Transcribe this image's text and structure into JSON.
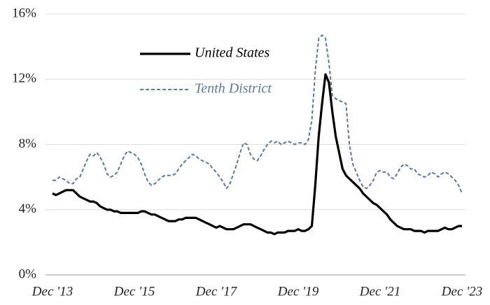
{
  "chart_data": {
    "type": "line",
    "categories": [
      "Dec '13",
      null,
      null,
      null,
      null,
      null,
      null,
      null,
      null,
      null,
      null,
      null,
      null,
      null,
      null,
      null,
      null,
      null,
      null,
      null,
      null,
      null,
      null,
      null,
      "Dec '15",
      null,
      null,
      null,
      null,
      null,
      null,
      null,
      null,
      null,
      null,
      null,
      null,
      null,
      null,
      null,
      null,
      null,
      null,
      null,
      null,
      null,
      null,
      null,
      "Dec '17",
      null,
      null,
      null,
      null,
      null,
      null,
      null,
      null,
      null,
      null,
      null,
      null,
      null,
      null,
      null,
      null,
      null,
      null,
      null,
      null,
      null,
      null,
      null,
      "Dec '19",
      null,
      null,
      null,
      null,
      null,
      null,
      null,
      null,
      null,
      null,
      null,
      null,
      null,
      null,
      null,
      null,
      null,
      null,
      null,
      null,
      null,
      null,
      null,
      "Dec '21",
      null,
      null,
      null,
      null,
      null,
      null,
      null,
      null,
      null,
      null,
      null,
      null,
      null,
      null,
      null,
      null,
      null,
      null,
      null,
      null,
      null,
      null,
      null,
      "Dec '23"
    ],
    "series": [
      {
        "name": "United States",
        "color": "#000000",
        "dashed": false,
        "values": [
          5.0,
          4.9,
          5.0,
          5.1,
          5.2,
          5.2,
          5.2,
          5.0,
          4.8,
          4.7,
          4.6,
          4.5,
          4.5,
          4.4,
          4.2,
          4.1,
          4.0,
          4.0,
          3.9,
          3.9,
          3.8,
          3.8,
          3.8,
          3.8,
          3.8,
          3.8,
          3.9,
          3.9,
          3.8,
          3.7,
          3.7,
          3.6,
          3.5,
          3.4,
          3.3,
          3.3,
          3.3,
          3.4,
          3.4,
          3.5,
          3.5,
          3.5,
          3.5,
          3.4,
          3.3,
          3.2,
          3.1,
          3.0,
          2.9,
          3.0,
          2.9,
          2.8,
          2.8,
          2.8,
          2.9,
          3.0,
          3.1,
          3.1,
          3.1,
          3.0,
          2.9,
          2.8,
          2.7,
          2.6,
          2.6,
          2.5,
          2.6,
          2.6,
          2.6,
          2.7,
          2.7,
          2.7,
          2.8,
          2.7,
          2.7,
          2.8,
          3.0,
          5.5,
          8.5,
          10.5,
          12.3,
          11.8,
          10.0,
          8.5,
          7.5,
          6.5,
          6.1,
          5.9,
          5.7,
          5.5,
          5.3,
          5.0,
          4.8,
          4.6,
          4.4,
          4.3,
          4.1,
          3.9,
          3.7,
          3.4,
          3.2,
          3.0,
          2.9,
          2.8,
          2.8,
          2.8,
          2.7,
          2.7,
          2.7,
          2.6,
          2.7,
          2.7,
          2.7,
          2.7,
          2.8,
          2.9,
          2.8,
          2.8,
          2.9,
          3.0,
          3.0
        ]
      },
      {
        "name": "Tenth District",
        "color": "#5b7a99",
        "dashed": true,
        "values": [
          5.8,
          5.8,
          6.0,
          5.9,
          5.8,
          5.6,
          5.6,
          5.9,
          6.0,
          6.5,
          7.0,
          7.4,
          7.3,
          7.5,
          7.2,
          6.8,
          6.2,
          6.0,
          6.1,
          6.3,
          6.8,
          7.3,
          7.6,
          7.5,
          7.4,
          7.2,
          6.8,
          6.2,
          5.7,
          5.5,
          5.6,
          5.8,
          6.0,
          6.1,
          6.1,
          6.1,
          6.2,
          6.5,
          6.8,
          7.0,
          7.2,
          7.4,
          7.3,
          7.1,
          7.0,
          6.9,
          6.8,
          6.5,
          6.3,
          6.0,
          5.7,
          5.3,
          5.6,
          6.2,
          6.8,
          7.5,
          8.1,
          8.0,
          7.4,
          7.1,
          7.0,
          7.3,
          7.7,
          8.0,
          8.2,
          8.1,
          8.2,
          8.0,
          8.1,
          8.2,
          8.1,
          8.0,
          8.1,
          8.1,
          8.0,
          8.3,
          9.5,
          12.5,
          14.5,
          14.7,
          14.5,
          13.0,
          11.0,
          10.8,
          10.7,
          10.6,
          10.5,
          8.0,
          6.8,
          6.3,
          5.8,
          5.4,
          5.3,
          5.5,
          5.8,
          6.3,
          6.4,
          6.3,
          6.3,
          6.0,
          5.9,
          6.2,
          6.6,
          6.8,
          6.7,
          6.5,
          6.5,
          6.2,
          6.1,
          6.0,
          6.1,
          6.3,
          6.2,
          6.0,
          6.2,
          6.3,
          6.2,
          6.0,
          5.8,
          5.5,
          5.0
        ]
      }
    ],
    "ylim": [
      0,
      16
    ],
    "yticks": [
      {
        "value": 0,
        "label": "0%"
      },
      {
        "value": 4,
        "label": "4%"
      },
      {
        "value": 8,
        "label": "8%"
      },
      {
        "value": 12,
        "label": "12%"
      },
      {
        "value": 16,
        "label": "16%"
      }
    ],
    "grid": true,
    "legend": "upper left"
  }
}
